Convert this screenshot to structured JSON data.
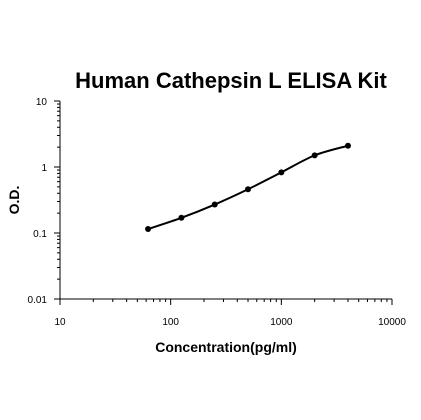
{
  "chart_data": {
    "type": "scatter",
    "title": "Human Cathepsin L ELISA Kit",
    "xlabel": "Concentration(pg/ml)",
    "ylabel": "O.D.",
    "x_scale": "log",
    "y_scale": "log",
    "xlim": [
      10,
      10000
    ],
    "ylim": [
      0.01,
      10
    ],
    "x_ticks": [
      10,
      100,
      1000,
      10000
    ],
    "x_tick_labels": [
      "10",
      "100",
      "1000",
      "10000"
    ],
    "y_ticks": [
      0.01,
      0.1,
      1,
      10
    ],
    "y_tick_labels": [
      "0.01",
      "0.1",
      "1",
      "10"
    ],
    "grid": false,
    "series": [
      {
        "x": [
          62.5,
          125,
          250,
          500,
          1000,
          2000,
          4000
        ],
        "y": [
          0.115,
          0.17,
          0.27,
          0.46,
          0.83,
          1.5,
          2.1
        ],
        "fit_curve": true,
        "color": "#000000"
      }
    ]
  }
}
